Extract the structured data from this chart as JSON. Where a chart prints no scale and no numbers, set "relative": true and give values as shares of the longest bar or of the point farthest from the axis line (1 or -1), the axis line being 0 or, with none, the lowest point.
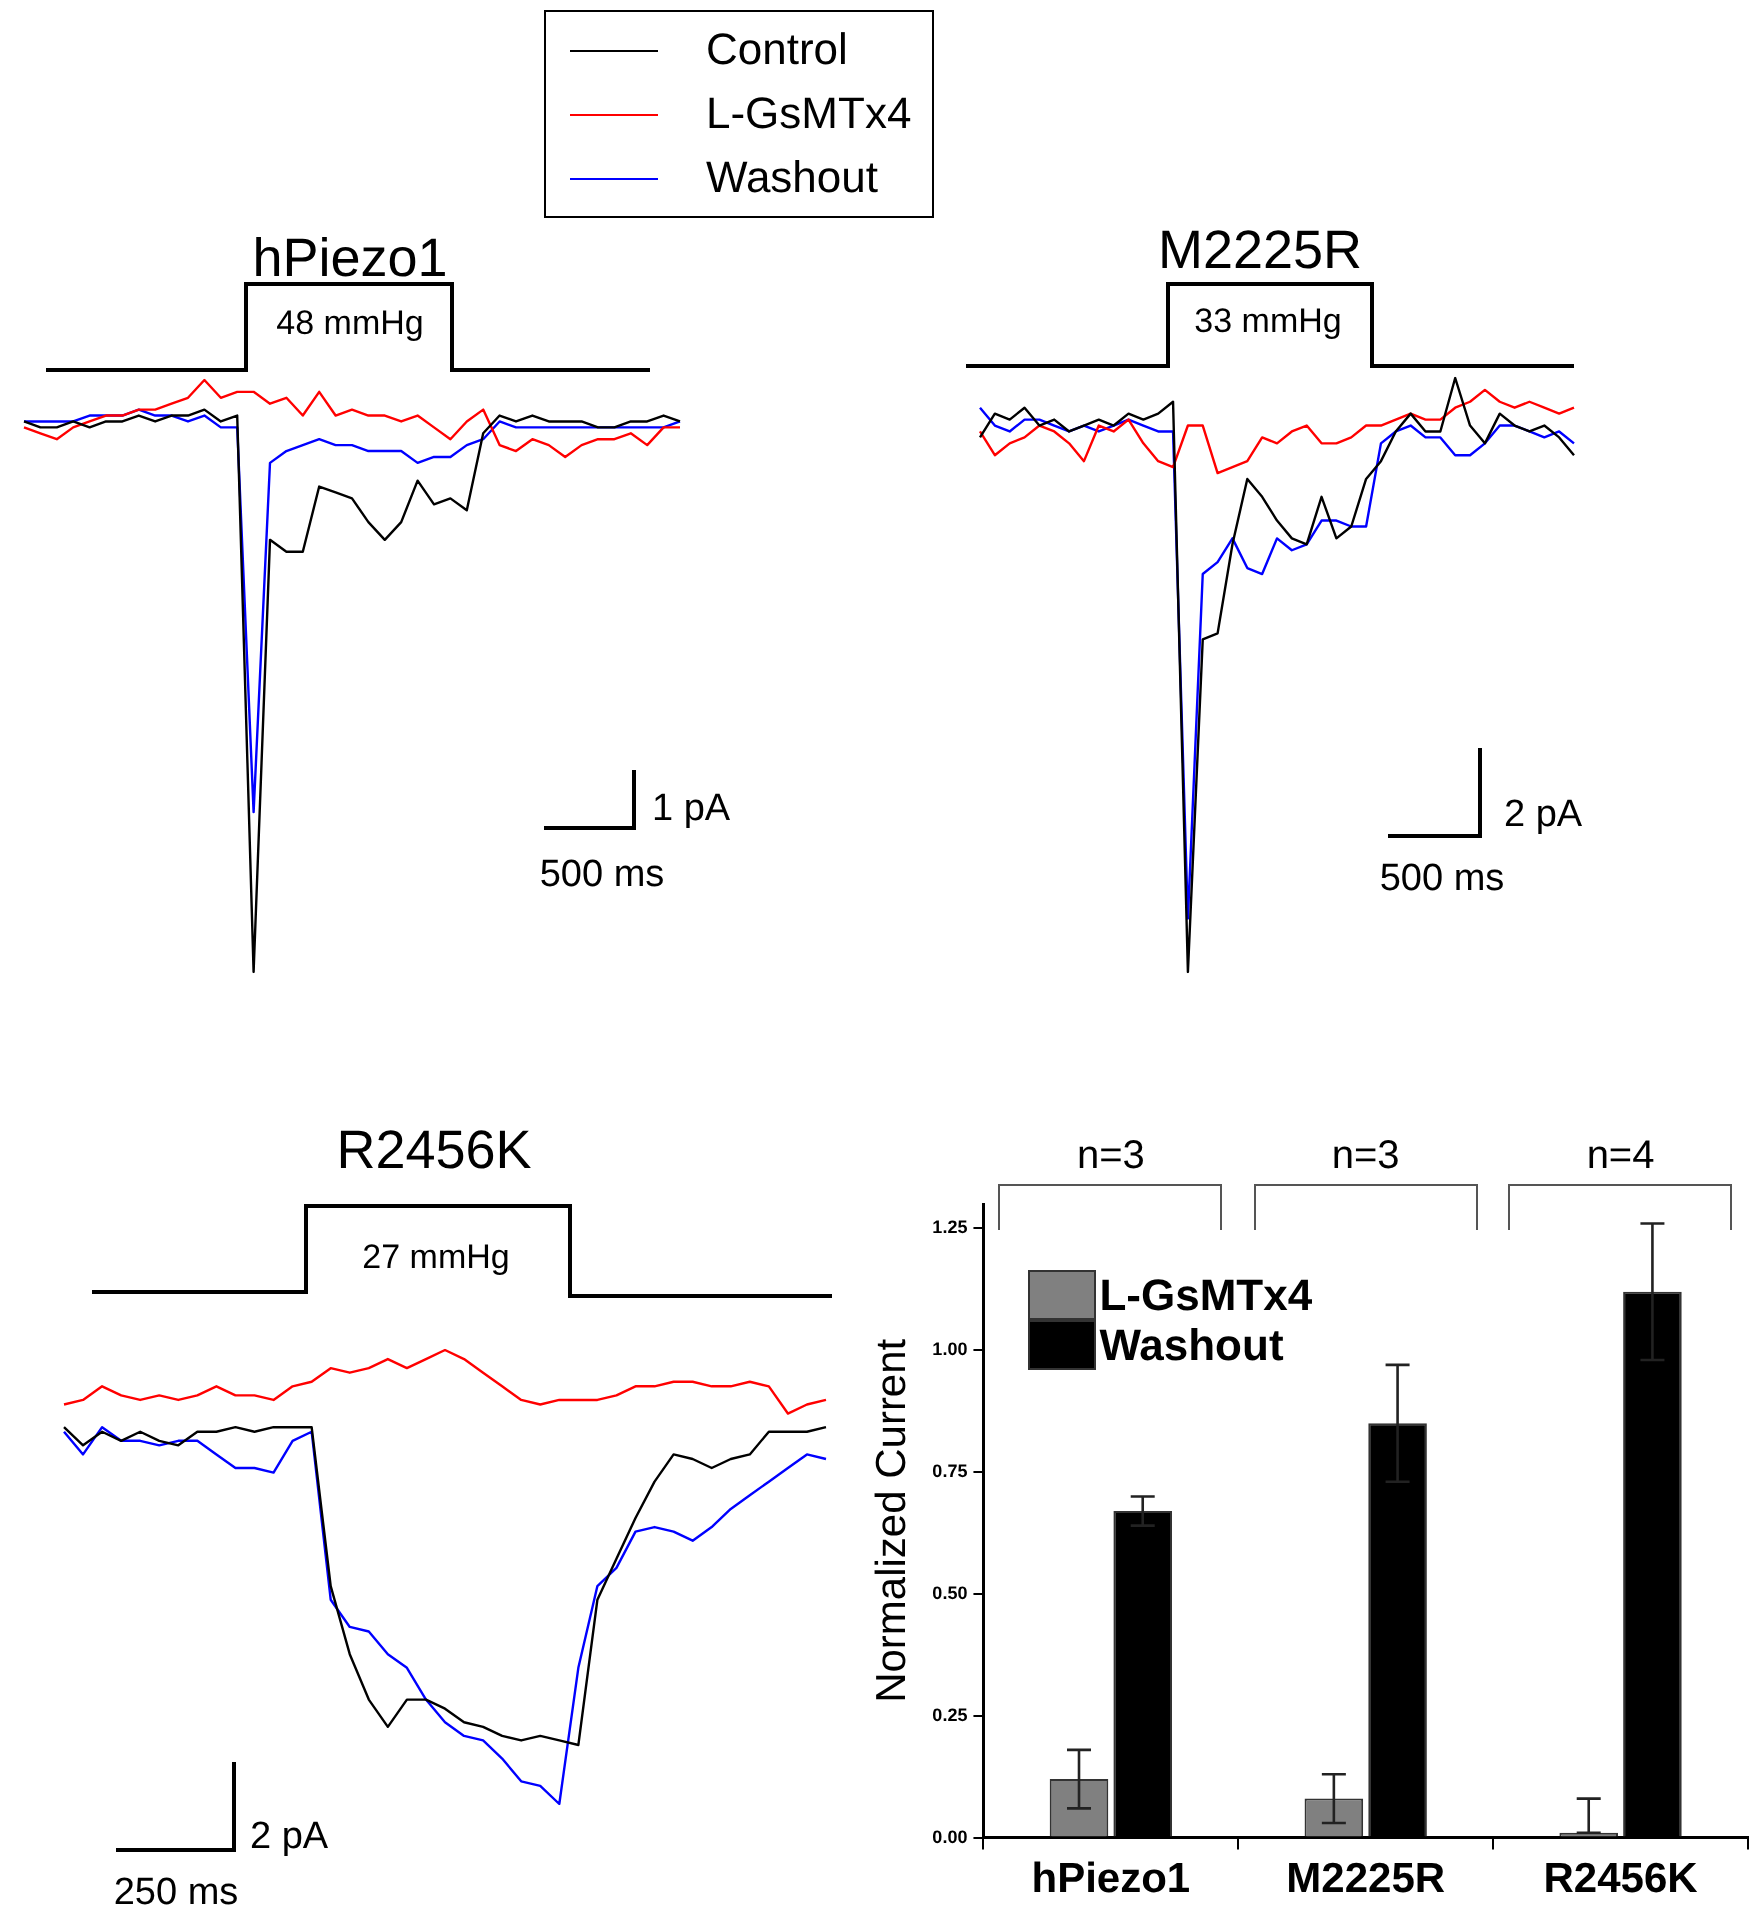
{
  "chart_data": [
    {
      "type": "line",
      "title": "hPiezo1",
      "relative": true,
      "legend": "top",
      "annotations": [
        "48 mmHg",
        "1 pA",
        "500 ms"
      ],
      "categories": [
        null,
        null,
        null,
        null,
        null,
        null,
        null,
        null,
        null,
        null,
        null,
        null,
        null,
        null,
        null,
        null,
        null,
        null,
        null,
        null,
        null,
        null,
        null,
        null,
        null,
        null,
        null,
        null,
        null,
        null,
        null,
        null,
        null,
        null,
        null,
        null,
        null,
        null,
        null,
        null,
        null
      ],
      "series": [
        {
          "name": "Control",
          "color": "#000000",
          "values": [
            0.93,
            0.92,
            0.92,
            0.93,
            0.92,
            0.93,
            0.93,
            0.94,
            0.93,
            0.94,
            0.94,
            0.95,
            0.93,
            0.94,
            0,
            0.73,
            0.71,
            0.71,
            0.82,
            0.81,
            0.8,
            0.76,
            0.73,
            0.76,
            0.83,
            0.79,
            0.8,
            0.78,
            0.91,
            0.94,
            0.93,
            0.94,
            0.93,
            0.93,
            0.93,
            0.92,
            0.92,
            0.93,
            0.93,
            0.94,
            0.93
          ]
        },
        {
          "name": "L-GsMTx4",
          "color": "#ff0000",
          "values": [
            0.92,
            0.91,
            0.9,
            0.92,
            0.93,
            0.94,
            0.94,
            0.95,
            0.95,
            0.96,
            0.97,
            1,
            0.97,
            0.98,
            0.98,
            0.96,
            0.97,
            0.94,
            0.98,
            0.94,
            0.95,
            0.94,
            0.94,
            0.93,
            0.94,
            0.92,
            0.9,
            0.93,
            0.95,
            0.89,
            0.88,
            0.9,
            0.89,
            0.87,
            0.89,
            0.9,
            0.9,
            0.91,
            0.89,
            0.92,
            0.92
          ]
        },
        {
          "name": "Washout",
          "color": "#0000ff",
          "values": [
            0.93,
            0.93,
            0.93,
            0.93,
            0.94,
            0.94,
            0.94,
            0.95,
            0.94,
            0.94,
            0.93,
            0.94,
            0.92,
            0.92,
            0.27,
            0.86,
            0.88,
            0.89,
            0.9,
            0.89,
            0.89,
            0.88,
            0.88,
            0.88,
            0.86,
            0.87,
            0.87,
            0.89,
            0.9,
            0.93,
            0.92,
            0.92,
            0.92,
            0.92,
            0.92,
            0.92,
            0.92,
            0.92,
            0.92,
            0.92,
            0.93
          ]
        }
      ]
    },
    {
      "type": "line",
      "title": "M2225R",
      "relative": true,
      "annotations": [
        "33 mmHg",
        "2 pA",
        "500 ms"
      ],
      "categories": [
        null,
        null,
        null,
        null,
        null,
        null,
        null,
        null,
        null,
        null,
        null,
        null,
        null,
        null,
        null,
        null,
        null,
        null,
        null,
        null,
        null,
        null,
        null,
        null,
        null,
        null,
        null,
        null,
        null,
        null,
        null,
        null,
        null,
        null,
        null,
        null,
        null,
        null,
        null,
        null,
        null
      ],
      "series": [
        {
          "color": "#000000",
          "values": [
            0.9,
            0.94,
            0.93,
            0.95,
            0.92,
            0.93,
            0.91,
            0.92,
            0.93,
            0.92,
            0.94,
            0.93,
            0.94,
            0.96,
            0,
            0.56,
            0.57,
            0.72,
            0.83,
            0.8,
            0.76,
            0.73,
            0.72,
            0.8,
            0.73,
            0.75,
            0.83,
            0.86,
            0.91,
            0.94,
            0.91,
            0.91,
            1,
            0.92,
            0.89,
            0.94,
            0.92,
            0.91,
            0.92,
            0.9,
            0.87
          ]
        },
        {
          "color": "#ff0000",
          "values": [
            0.91,
            0.87,
            0.89,
            0.9,
            0.92,
            0.91,
            0.89,
            0.86,
            0.92,
            0.91,
            0.93,
            0.89,
            0.86,
            0.85,
            0.92,
            0.92,
            0.84,
            0.85,
            0.86,
            0.9,
            0.89,
            0.91,
            0.92,
            0.89,
            0.89,
            0.9,
            0.92,
            0.92,
            0.93,
            0.94,
            0.93,
            0.93,
            0.95,
            0.96,
            0.98,
            0.96,
            0.95,
            0.96,
            0.95,
            0.94,
            0.95
          ]
        },
        {
          "color": "#0000ff",
          "values": [
            0.95,
            0.92,
            0.91,
            0.93,
            0.93,
            0.92,
            0.91,
            0.92,
            0.91,
            0.92,
            0.93,
            0.92,
            0.91,
            0.91,
            0.09,
            0.67,
            0.69,
            0.73,
            0.68,
            0.67,
            0.73,
            0.71,
            0.72,
            0.76,
            0.76,
            0.75,
            0.75,
            0.89,
            0.91,
            0.92,
            0.9,
            0.9,
            0.87,
            0.87,
            0.89,
            0.92,
            0.92,
            0.91,
            0.9,
            0.91,
            0.89
          ]
        }
      ]
    },
    {
      "type": "line",
      "title": "R2456K",
      "relative": true,
      "annotations": [
        "27 mmHg",
        "2 pA",
        "250 ms"
      ],
      "categories": [
        null,
        null,
        null,
        null,
        null,
        null,
        null,
        null,
        null,
        null,
        null,
        null,
        null,
        null,
        null,
        null,
        null,
        null,
        null,
        null,
        null,
        null,
        null,
        null,
        null,
        null,
        null,
        null,
        null,
        null,
        null,
        null,
        null,
        null,
        null,
        null,
        null,
        null,
        null,
        null,
        null
      ],
      "series": [
        {
          "color": "#000000",
          "values": [
            0.83,
            0.79,
            0.82,
            0.8,
            0.82,
            0.8,
            0.79,
            0.82,
            0.82,
            0.83,
            0.82,
            0.83,
            0.83,
            0.83,
            0.48,
            0.33,
            0.23,
            0.17,
            0.23,
            0.23,
            0.21,
            0.18,
            0.17,
            0.15,
            0.14,
            0.15,
            0.14,
            0.13,
            0.45,
            0.54,
            0.63,
            0.71,
            0.77,
            0.76,
            0.74,
            0.76,
            0.77,
            0.82,
            0.82,
            0.82,
            0.83
          ]
        },
        {
          "color": "#ff0000",
          "values": [
            0.88,
            0.89,
            0.92,
            0.9,
            0.89,
            0.9,
            0.89,
            0.9,
            0.92,
            0.9,
            0.9,
            0.89,
            0.92,
            0.93,
            0.96,
            0.95,
            0.96,
            0.98,
            0.96,
            0.98,
            1,
            0.98,
            0.95,
            0.92,
            0.89,
            0.88,
            0.89,
            0.89,
            0.89,
            0.9,
            0.92,
            0.92,
            0.93,
            0.93,
            0.92,
            0.92,
            0.93,
            0.92,
            0.86,
            0.88,
            0.89
          ]
        },
        {
          "color": "#0000ff",
          "values": [
            0.82,
            0.77,
            0.83,
            0.8,
            0.8,
            0.79,
            0.8,
            0.8,
            0.77,
            0.74,
            0.74,
            0.73,
            0.8,
            0.82,
            0.45,
            0.39,
            0.38,
            0.33,
            0.3,
            0.23,
            0.18,
            0.15,
            0.14,
            0.1,
            0.05,
            0.04,
            0,
            0.3,
            0.48,
            0.52,
            0.6,
            0.61,
            0.6,
            0.58,
            0.61,
            0.65,
            0.68,
            0.71,
            0.74,
            0.77,
            0.76
          ]
        }
      ]
    },
    {
      "type": "bar",
      "categories": [
        "hPiezo1",
        "M2225R",
        "R2456K"
      ],
      "ylabel": "Normalized Current",
      "ylim": [
        0,
        1.3
      ],
      "yticks": [
        {
          "value": 0,
          "label": "0.00"
        },
        {
          "value": 0.25,
          "label": "0.25"
        },
        {
          "value": 0.5,
          "label": "0.50"
        },
        {
          "value": 0.75,
          "label": "0.75"
        },
        {
          "value": 1,
          "label": "1.00"
        },
        {
          "value": 1.25,
          "label": "1.25"
        }
      ],
      "legend": "top left",
      "annotations": [
        "n=3",
        "n=3",
        "n=4"
      ],
      "series": [
        {
          "name": "L-GsMTx4",
          "color": "#808080",
          "values": [
            0.12,
            0.08,
            0.01
          ],
          "errors": [
            0.06,
            0.05,
            [
              0.01,
              0.08
            ]
          ]
        },
        {
          "name": "Washout",
          "color": "#000000",
          "values": [
            0.67,
            0.85,
            1.12
          ],
          "errors": [
            0.03,
            0.12,
            0.14
          ]
        }
      ]
    }
  ]
}
